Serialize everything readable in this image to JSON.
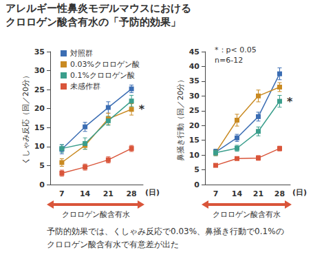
{
  "title": [
    "アレルギー性鼻炎モデルマウスにおける",
    "クロロゲン酸含有水の「予防的効果」"
  ],
  "footnote": [
    "予防的効果では、くしゃみ反応で0.03%、鼻掻き行動で0.1%の",
    "クロロゲン酸含有水で有意差が出た"
  ],
  "chart_data": [
    {
      "type": "line",
      "y_label": "くしゃみ反応（回／20分）",
      "x_label": "(日)",
      "categories": [
        "7",
        "14",
        "21",
        "28"
      ],
      "ylim": [
        0,
        35
      ],
      "yticks": [
        0,
        5,
        10,
        15,
        20,
        25,
        30,
        35
      ],
      "grid": false,
      "marker": "square",
      "legend": "upper left",
      "period_label": "クロロゲン酸含有水",
      "series": [
        {
          "name": "対照群",
          "color": "#3b6db3",
          "values": [
            9.3,
            15.2,
            20.3,
            25.2
          ],
          "errors": [
            1.2,
            1.2,
            1.5,
            1.0
          ]
        },
        {
          "name": "0.03%クロロゲン酸",
          "color": "#c98a22",
          "values": [
            5.8,
            10.3,
            17.3,
            19.8
          ],
          "errors": [
            1.0,
            1.0,
            1.5,
            1.5
          ]
        },
        {
          "name": "0.1%クロロゲン酸",
          "color": "#3a9e8c",
          "values": [
            9.5,
            10.8,
            16.8,
            22.0
          ],
          "errors": [
            1.0,
            1.5,
            1.2,
            1.5
          ]
        },
        {
          "name": "未感作群",
          "color": "#d9553a",
          "values": [
            3.0,
            4.6,
            6.5,
            9.5
          ],
          "errors": [
            0.8,
            0.8,
            0.8,
            0.8
          ]
        }
      ],
      "significance": [
        {
          "series": "0.03%クロロゲン酸",
          "category": "28",
          "label": "*"
        }
      ]
    },
    {
      "type": "line",
      "y_label": "鼻掻き行動（回／20分）",
      "x_label": "(日)",
      "categories": [
        "7",
        "14",
        "21",
        "28"
      ],
      "ylim": [
        0,
        45
      ],
      "yticks": [
        0,
        5,
        10,
        15,
        20,
        25,
        30,
        35,
        40,
        45
      ],
      "grid": false,
      "marker": "square",
      "period_label": "クロロゲン酸含有水",
      "annotations": [
        "*：p< 0.05",
        "n=6-12"
      ],
      "series": [
        {
          "name": "対照群",
          "color": "#3b6db3",
          "values": [
            11.0,
            15.8,
            23.0,
            37.5
          ],
          "errors": [
            1.0,
            1.2,
            1.5,
            2.0
          ]
        },
        {
          "name": "0.03%クロロゲン酸",
          "color": "#c98a22",
          "values": [
            10.8,
            21.8,
            30.0,
            33.0
          ],
          "errors": [
            1.0,
            2.0,
            2.0,
            1.5
          ]
        },
        {
          "name": "0.1%クロロゲン酸",
          "color": "#3a9e8c",
          "values": [
            10.8,
            12.3,
            18.0,
            28.2
          ],
          "errors": [
            1.0,
            1.0,
            1.5,
            2.0
          ]
        },
        {
          "name": "未感作群",
          "color": "#d9553a",
          "values": [
            6.5,
            8.8,
            9.0,
            12.2
          ],
          "errors": [
            0.5,
            0.5,
            0.8,
            0.8
          ]
        }
      ],
      "significance": [
        {
          "series": "0.1%クロロゲン酸",
          "category": "28",
          "label": "*"
        }
      ]
    }
  ]
}
